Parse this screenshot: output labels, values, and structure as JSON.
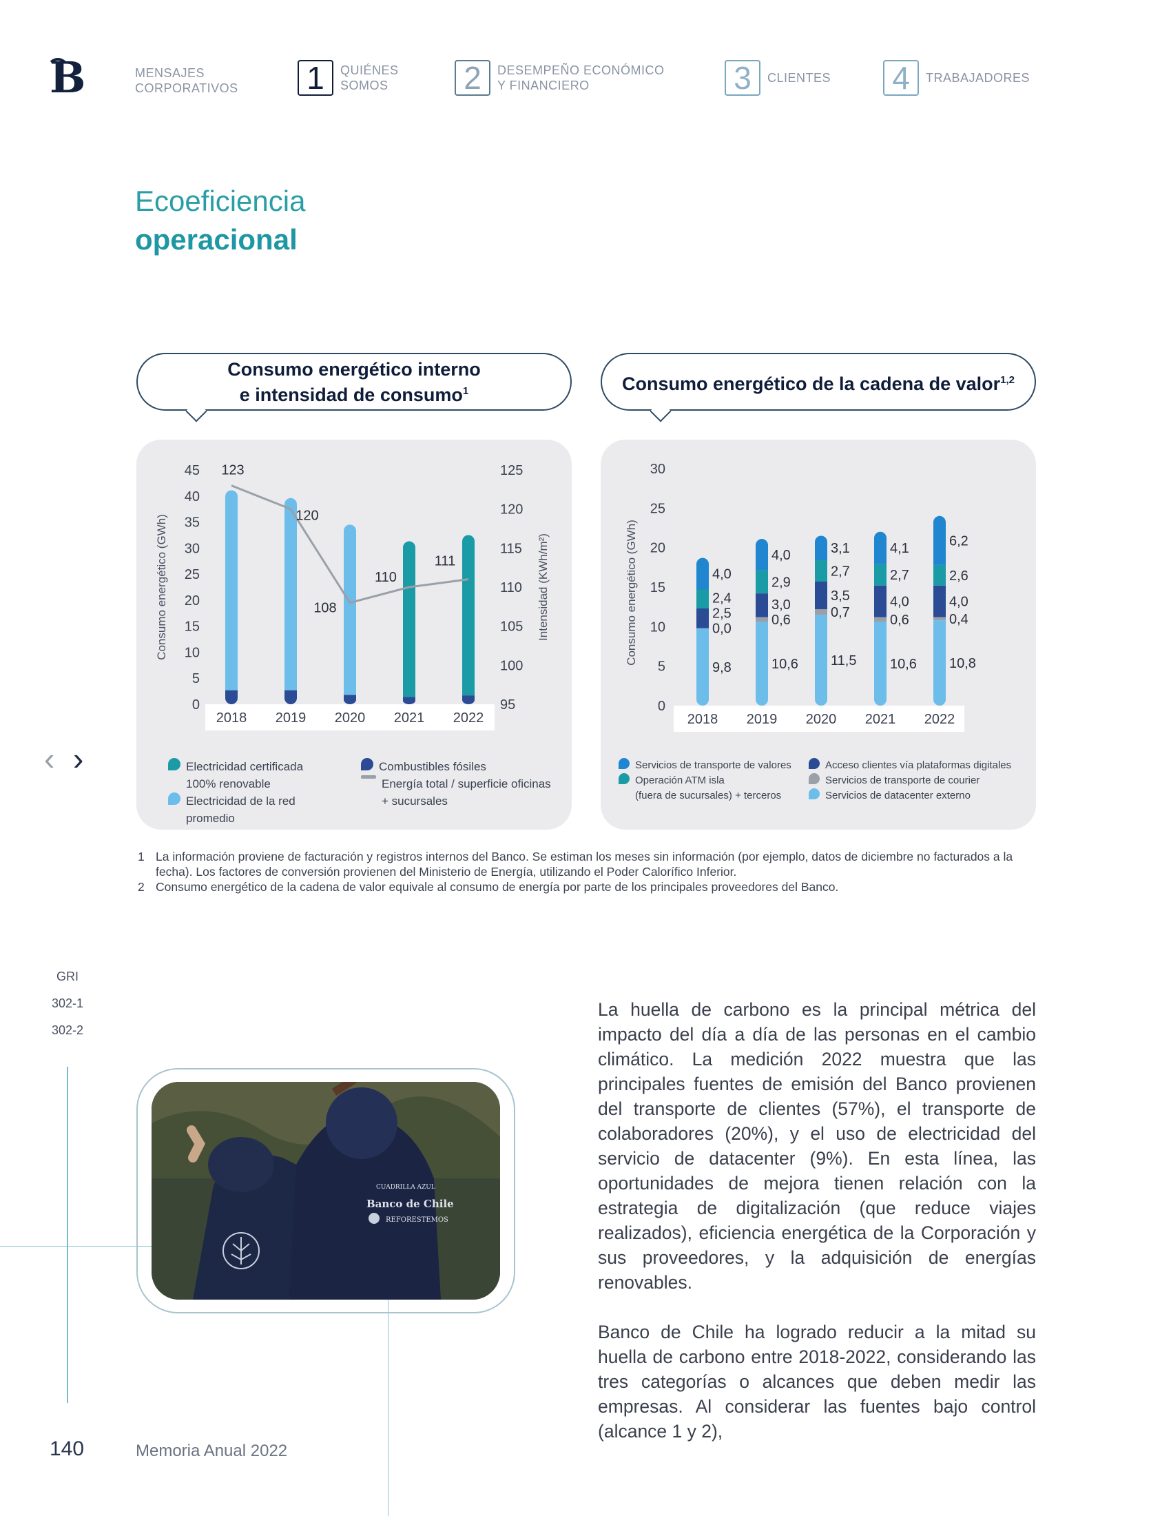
{
  "header": {
    "nav": [
      {
        "num": "",
        "label_line1": "MENSAJES",
        "label_line2": "CORPORATIVOS"
      },
      {
        "num": "1",
        "label_line1": "QUIÉNES",
        "label_line2": "SOMOS"
      },
      {
        "num": "2",
        "label_line1": "DESEMPEÑO ECONÓMICO",
        "label_line2": "Y FINANCIERO"
      },
      {
        "num": "3",
        "label_line1": "CLIENTES",
        "label_line2": ""
      },
      {
        "num": "4",
        "label_line1": "TRABAJADORES",
        "label_line2": ""
      }
    ]
  },
  "title": {
    "line1": "Ecoeficiencia",
    "line2": "operacional"
  },
  "bubble1": {
    "line1": "Consumo energético interno",
    "line2": "e intensidad de consumo",
    "sup": "1"
  },
  "bubble2": {
    "text": "Consumo energético de la cadena de valor",
    "sup": "1,2"
  },
  "chart_data": [
    {
      "type": "bar",
      "categories": [
        "2018",
        "2019",
        "2020",
        "2021",
        "2022"
      ],
      "series": [
        {
          "name": "Electricidad certificada 100% renovable",
          "values": [
            0,
            0,
            0,
            29.9,
            30.8
          ],
          "color": "#1a9ba5"
        },
        {
          "name": "Electricidad de la red promedio",
          "values": [
            38.4,
            36.9,
            32.7,
            0,
            0
          ],
          "color": "#6cbdea"
        },
        {
          "name": "Combustibles fósiles",
          "values": [
            2.7,
            2.7,
            1.8,
            1.4,
            1.7
          ],
          "color": "#2b4b94"
        },
        {
          "name": "Energía total / superficie oficinas + sucursales",
          "type": "line",
          "values": [
            123,
            120,
            108,
            110,
            111
          ],
          "axis": "right",
          "color": "#9aa0a8"
        }
      ],
      "ylabel": "Consumo energético (GWh)",
      "ylabel_right": "Intensidad (KWh/m²)",
      "yticks": [
        "45",
        "40",
        "35",
        "30",
        "25",
        "20",
        "15",
        "10",
        "5",
        "0"
      ],
      "yticks_right": [
        "125",
        "120",
        "115",
        "110",
        "105",
        "100",
        "95"
      ],
      "ylim": [
        0,
        45
      ],
      "ylim_right": [
        95,
        125
      ],
      "line_labels": [
        "123",
        "120",
        "108",
        "110",
        "111"
      ],
      "legend": [
        {
          "label1": "Electricidad certificada",
          "label2": "100% renovable",
          "color": "#1a9ba5",
          "kind": "dot"
        },
        {
          "label1": "Electricidad de la red",
          "label2": "promedio",
          "color": "#6cbdea",
          "kind": "dot"
        },
        {
          "label1": "Combustibles fósiles",
          "label2": "",
          "color": "#2b4b94",
          "kind": "dot"
        },
        {
          "label1": "Energía total / superficie oficinas",
          "label2": "+ sucursales",
          "color": "#9aa0a8",
          "kind": "line"
        }
      ]
    },
    {
      "type": "bar",
      "categories": [
        "2018",
        "2019",
        "2020",
        "2021",
        "2022"
      ],
      "series": [
        {
          "name": "Servicios de datacenter externo",
          "values": [
            9.8,
            10.6,
            11.5,
            10.6,
            10.8
          ],
          "labels": [
            "9,8",
            "10,6",
            "11,5",
            "10,6",
            "10,8"
          ],
          "color": "#6cbdea"
        },
        {
          "name": "Servicios de transporte de courier",
          "values": [
            0.0,
            0.6,
            0.7,
            0.6,
            0.4
          ],
          "labels": [
            "0,0",
            "0,6",
            "0,7",
            "0,6",
            "0,4"
          ],
          "color": "#9aa0a8"
        },
        {
          "name": "Acceso clientes vía plataformas digitales",
          "values": [
            2.5,
            3.0,
            3.5,
            4.0,
            4.0
          ],
          "labels": [
            "2,5",
            "3,0",
            "3,5",
            "4,0",
            "4,0"
          ],
          "color": "#2b4b94"
        },
        {
          "name": "Operación ATM isla (fuera de sucursales) + terceros",
          "values": [
            2.4,
            2.9,
            2.7,
            2.7,
            2.6
          ],
          "labels": [
            "2,4",
            "2,9",
            "2,7",
            "2,7",
            "2,6"
          ],
          "color": "#1a9ba5"
        },
        {
          "name": "Servicios de transporte de valores",
          "values": [
            4.0,
            4.0,
            3.1,
            4.1,
            6.2
          ],
          "labels": [
            "4,0",
            "4,0",
            "3,1",
            "4,1",
            "6,2"
          ],
          "color": "#1f86cf"
        }
      ],
      "ylabel": "Consumo energético (GWh)",
      "yticks": [
        "30",
        "25",
        "20",
        "15",
        "10",
        "5",
        "0"
      ],
      "ylim": [
        0,
        30
      ],
      "legend": [
        {
          "label1": "Servicios de transporte de valores",
          "label2": "",
          "color": "#1f86cf"
        },
        {
          "label1": "Operación ATM isla",
          "label2": "(fuera de sucursales) + terceros",
          "color": "#1a9ba5"
        },
        {
          "label1": "Acceso clientes vía plataformas digitales",
          "label2": "",
          "color": "#2b4b94"
        },
        {
          "label1": "Servicios de transporte de courier",
          "label2": "",
          "color": "#9aa0a8"
        },
        {
          "label1": "Servicios de datacenter externo",
          "label2": "",
          "color": "#6cbdea"
        }
      ]
    }
  ],
  "footnotes": [
    {
      "n": "1",
      "text": "La información proviene de facturación y registros internos del Banco. Se estiman los meses sin información (por ejemplo, datos de diciembre no facturados a la fecha). Los factores de conversión provienen del Ministerio de Energía, utilizando el Poder Calorífico Inferior."
    },
    {
      "n": "2",
      "text": "Consumo energético de la cadena de valor equivale al consumo de energía por parte de los principales proveedores del Banco."
    }
  ],
  "gri": {
    "label": "GRI",
    "codes": [
      "302-1",
      "302-2"
    ]
  },
  "photo": {
    "caption1": "CUADRILLA AZUL",
    "caption2": "Banco de Chile",
    "caption3": "REFORESTEMOS"
  },
  "body": {
    "p1": "La huella de carbono es la principal métrica del impacto del día a día de las personas en el cambio climático. La medición 2022 muestra que las principales fuentes de emisión del Banco provienen del transporte de clientes (57%), el transporte de colaboradores (20%), y el uso de electricidad del servicio de datacenter (9%). En esta línea, las oportunidades de mejora tienen relación con la estrategia de digitalización (que reduce viajes realizados), eficiencia energética de la Corporación y sus proveedores, y la adquisición de energías renovables.",
    "p2": "Banco de Chile ha logrado reducir a la mitad su huella de carbono entre 2018-2022, considerando las tres categorías o alcances que deben medir las empresas. Al considerar las fuentes bajo control (alcance 1 y 2),"
  },
  "footer": {
    "page": "140",
    "title": "Memoria Anual 2022"
  },
  "nav_arrows": {
    "prev": "‹",
    "next": "›"
  }
}
